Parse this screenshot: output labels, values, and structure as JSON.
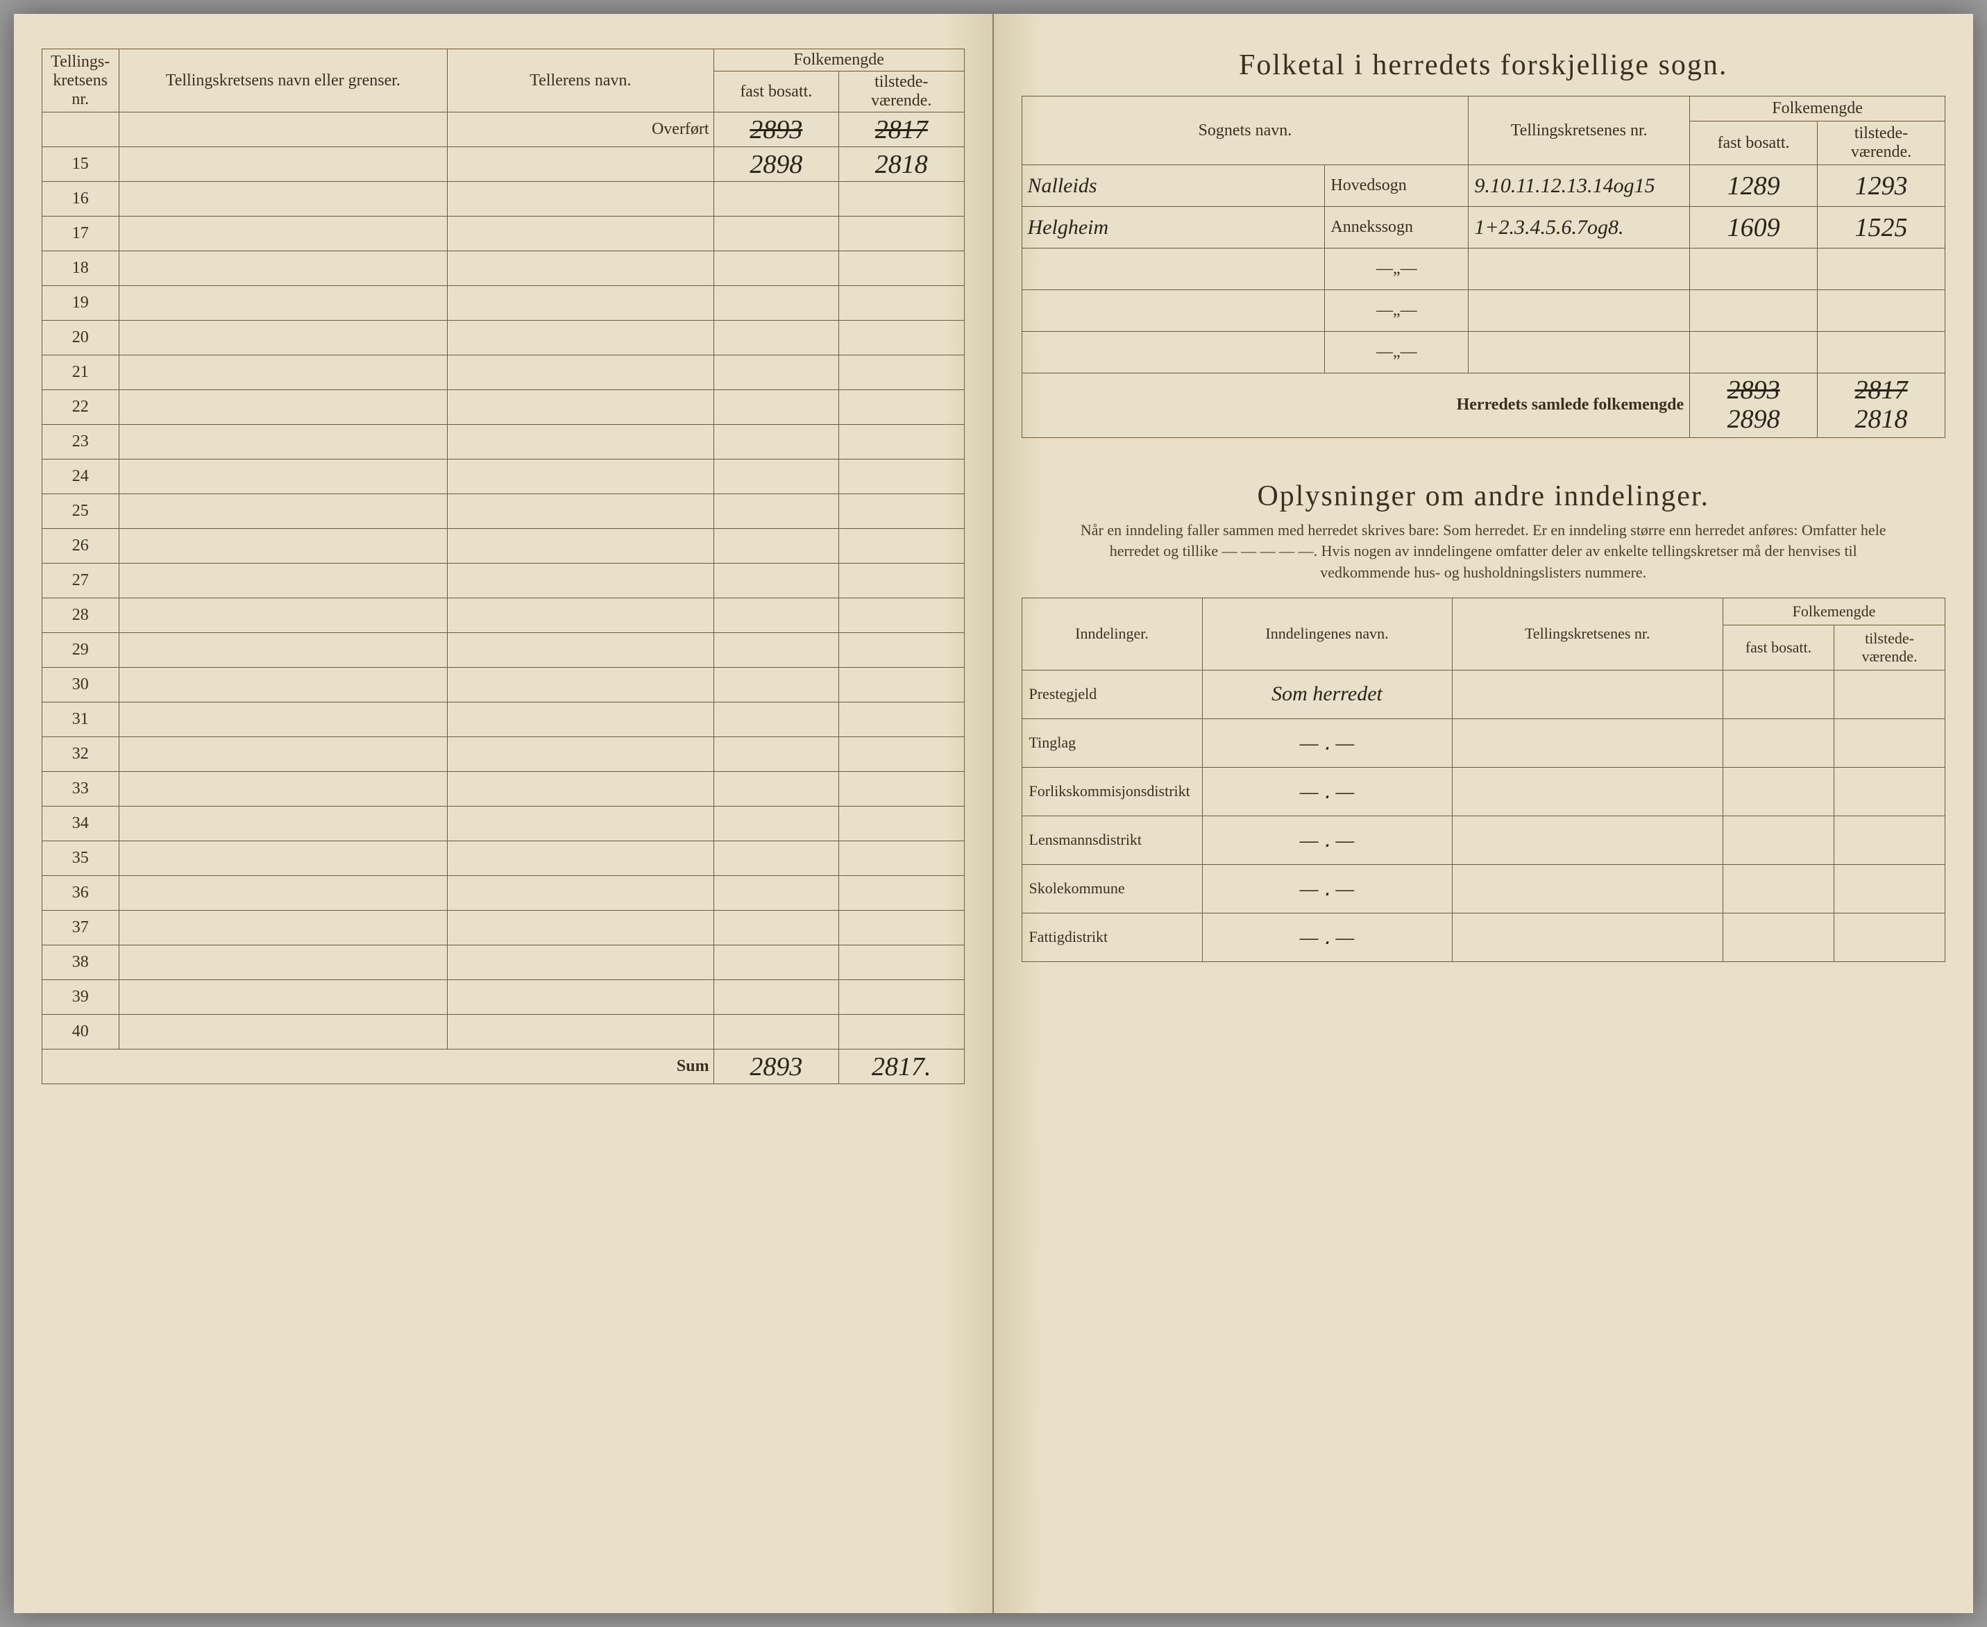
{
  "left": {
    "headers": {
      "kretsens_nr": "Tellings-\nkretsens\nnr.",
      "kretsens_navn": "Tellingskretsens navn eller grenser.",
      "tellerens_navn": "Tellerens navn.",
      "folkemengde": "Folkemengde",
      "fast_bosatt": "fast\nbosatt.",
      "tilstede": "tilstede-\nværende."
    },
    "overfort_label": "Overført",
    "overfort_fast": "2893",
    "overfort_tilstede": "2817",
    "row15_fast": "2898",
    "row15_tilstede": "2818",
    "row_numbers": [
      "15",
      "16",
      "17",
      "18",
      "19",
      "20",
      "21",
      "22",
      "23",
      "24",
      "25",
      "26",
      "27",
      "28",
      "29",
      "30",
      "31",
      "32",
      "33",
      "34",
      "35",
      "36",
      "37",
      "38",
      "39",
      "40"
    ],
    "sum_label": "Sum",
    "sum_fast": "2893",
    "sum_tilstede": "2817."
  },
  "right": {
    "title": "Folketal i herredets forskjellige sogn.",
    "headers": {
      "sognets_navn": "Sognets navn.",
      "kretsenes_nr": "Tellingskretsenes\nnr.",
      "folkemengde": "Folkemengde",
      "fast_bosatt": "fast\nbosatt.",
      "tilstede": "tilstede-\nværende."
    },
    "sogn_rows": [
      {
        "navn": "Nalleids",
        "type": "Hovedsogn",
        "kretser": "9.10.11.12.13.14og15",
        "fast": "1289",
        "tilstede": "1293"
      },
      {
        "navn": "Helgheim",
        "type": "Annekssogn",
        "kretser": "1+2.3.4.5.6.7og8.",
        "fast": "1609",
        "tilstede": "1525"
      }
    ],
    "samlede_label": "Herredets samlede folkemengde",
    "samlede_fast_struck": "2893",
    "samlede_til_struck": "2817",
    "samlede_fast": "2898",
    "samlede_til": "2818",
    "section2_title": "Oplysninger om andre inndelinger.",
    "instruction": "Når en inndeling faller sammen med herredet skrives bare: Som herredet. Er en inndeling større enn herredet anføres: Omfatter hele herredet og tillike — — — — —. Hvis nogen av inndelingene omfatter deler av enkelte tellingskretser må der henvises til vedkommende hus- og husholdningslisters nummere.",
    "inndel_headers": {
      "inndelinger": "Inndelinger.",
      "inndelingenes_navn": "Inndelingenes navn.",
      "kretsenes_nr": "Tellingskretsenes\nnr.",
      "folkemengde": "Folkemengde",
      "fast_bosatt": "fast\nbosatt.",
      "tilstede": "tilstede-\nværende."
    },
    "inndel_rows": [
      {
        "label": "Prestegjeld",
        "navn": "Som herredet"
      },
      {
        "label": "Tinglag",
        "navn": "— ․ —"
      },
      {
        "label": "Forlikskommisjonsdistrikt",
        "navn": "— ․ —"
      },
      {
        "label": "Lensmannsdistrikt",
        "navn": "— ․ —"
      },
      {
        "label": "Skolekommune",
        "navn": "— ․ —"
      },
      {
        "label": "Fattigdistrikt",
        "navn": "— ․ —"
      }
    ]
  },
  "colors": {
    "paper": "#e8e0c8",
    "rule": "#6b5d3a",
    "ink": "#2a2418",
    "print": "#3a3020"
  }
}
